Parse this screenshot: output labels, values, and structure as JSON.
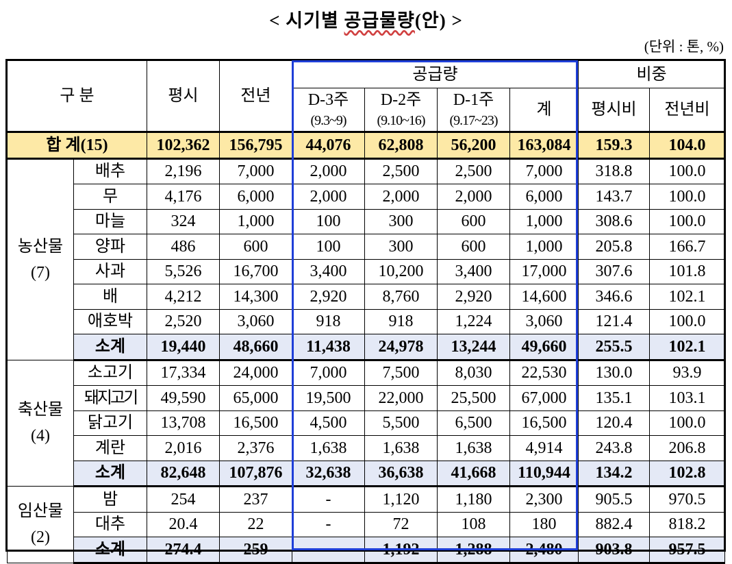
{
  "title": {
    "prefix": "< 시기별 ",
    "underlined": "공급물량",
    "suffix": "(안) >"
  },
  "unit": "(단위 : 톤, %)",
  "header": {
    "category": "구 분",
    "normal": "평시",
    "prev_year": "전년",
    "supply": "공급량",
    "weeks": [
      {
        "label": "D-3주",
        "range": "(9.3~9)"
      },
      {
        "label": "D-2주",
        "range": "(9.10~16)"
      },
      {
        "label": "D-1주",
        "range": "(9.17~23)"
      }
    ],
    "sum": "계",
    "ratio": "비중",
    "ratio_normal": "평시비",
    "ratio_prev": "전년비"
  },
  "total": {
    "label": "합 계(15)",
    "values": [
      "102,362",
      "156,795",
      "44,076",
      "62,808",
      "56,200",
      "163,084",
      "159.3",
      "104.0"
    ]
  },
  "groups": [
    {
      "name_line1": "농산물",
      "name_line2": "(7)",
      "items": [
        {
          "name": "배추",
          "values": [
            "2,196",
            "7,000",
            "2,000",
            "2,500",
            "2,500",
            "7,000",
            "318.8",
            "100.0"
          ]
        },
        {
          "name": "무",
          "values": [
            "4,176",
            "6,000",
            "2,000",
            "2,000",
            "2,000",
            "6,000",
            "143.7",
            "100.0"
          ]
        },
        {
          "name": "마늘",
          "values": [
            "324",
            "1,000",
            "100",
            "300",
            "600",
            "1,000",
            "308.6",
            "100.0"
          ]
        },
        {
          "name": "양파",
          "values": [
            "486",
            "600",
            "100",
            "300",
            "600",
            "1,000",
            "205.8",
            "166.7"
          ]
        },
        {
          "name": "사과",
          "values": [
            "5,526",
            "16,700",
            "3,400",
            "10,200",
            "3,400",
            "17,000",
            "307.6",
            "101.8"
          ]
        },
        {
          "name": "배",
          "values": [
            "4,212",
            "14,300",
            "2,920",
            "8,760",
            "2,920",
            "14,600",
            "346.6",
            "102.1"
          ]
        },
        {
          "name": "애호박",
          "values": [
            "2,520",
            "3,060",
            "918",
            "918",
            "1,224",
            "3,060",
            "121.4",
            "100.0"
          ]
        }
      ],
      "subtotal": {
        "name": "소계",
        "values": [
          "19,440",
          "48,660",
          "11,438",
          "24,978",
          "13,244",
          "49,660",
          "255.5",
          "102.1"
        ]
      }
    },
    {
      "name_line1": "축산물",
      "name_line2": "(4)",
      "items": [
        {
          "name": "소고기",
          "values": [
            "17,334",
            "24,000",
            "7,000",
            "7,500",
            "8,030",
            "22,530",
            "130.0",
            "93.9"
          ]
        },
        {
          "name": "돼지고기",
          "values": [
            "49,590",
            "65,000",
            "19,500",
            "22,000",
            "25,500",
            "67,000",
            "135.1",
            "103.1"
          ]
        },
        {
          "name": "닭고기",
          "values": [
            "13,708",
            "16,500",
            "4,500",
            "5,500",
            "6,500",
            "16,500",
            "120.4",
            "100.0"
          ]
        },
        {
          "name": "계란",
          "values": [
            "2,016",
            "2,376",
            "1,638",
            "1,638",
            "1,638",
            "4,914",
            "243.8",
            "206.8"
          ]
        }
      ],
      "subtotal": {
        "name": "소계",
        "values": [
          "82,648",
          "107,876",
          "32,638",
          "36,638",
          "41,668",
          "110,944",
          "134.2",
          "102.8"
        ]
      }
    },
    {
      "name_line1": "임산물",
      "name_line2": "(2)",
      "items": [
        {
          "name": "밤",
          "values": [
            "254",
            "237",
            "-",
            "1,120",
            "1,180",
            "2,300",
            "905.5",
            "970.5"
          ]
        },
        {
          "name": "대추",
          "values": [
            "20.4",
            "22",
            "-",
            "72",
            "108",
            "180",
            "882.4",
            "818.2"
          ]
        }
      ],
      "subtotal": {
        "name": "소계",
        "values": [
          "274.4",
          "259",
          "-",
          "1,192",
          "1,288",
          "2,480",
          "903.8",
          "957.5"
        ]
      }
    }
  ]
}
